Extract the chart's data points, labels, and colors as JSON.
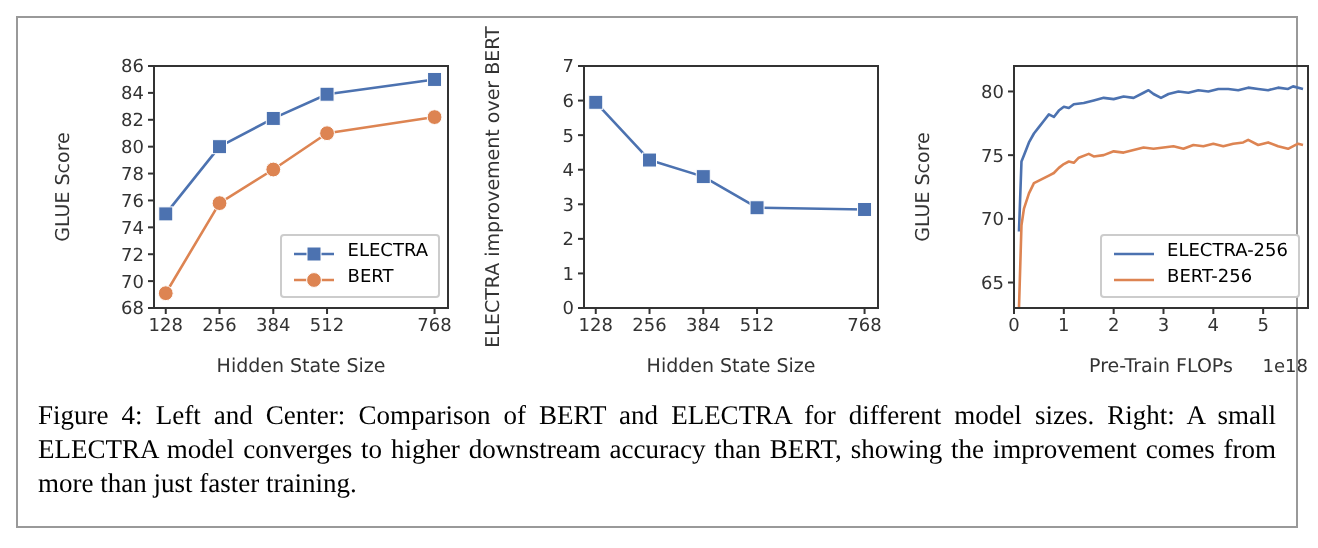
{
  "chart_data": [
    {
      "type": "line",
      "xlabel": "Hidden State Size",
      "ylabel": "GLUE Score",
      "x": [
        128,
        256,
        384,
        512,
        768
      ],
      "xlim": [
        100,
        800
      ],
      "xticks": [
        128,
        256,
        384,
        512,
        768
      ],
      "ylim": [
        68,
        86
      ],
      "yticks": [
        68,
        70,
        72,
        74,
        76,
        78,
        80,
        82,
        84,
        86
      ],
      "legend": "bottom right",
      "grid": false,
      "series": [
        {
          "name": "ELECTRA",
          "color": "#4c72b0",
          "marker": "square",
          "values": [
            75.0,
            80.0,
            82.1,
            83.9,
            85.0
          ]
        },
        {
          "name": "BERT",
          "color": "#dd8452",
          "marker": "circle",
          "values": [
            69.1,
            75.8,
            78.3,
            81.0,
            82.2
          ]
        }
      ],
      "annotations": [
        "Figure 4: Left and Center: Comparison of BERT and ELECTRA for different model sizes. Right: A small ELECTRA model converges to higher downstream accuracy than BERT, showing the improvement comes from more than just faster training."
      ]
    },
    {
      "type": "line",
      "xlabel": "Hidden State Size",
      "ylabel": "ELECTRA improvement over BERT",
      "x": [
        128,
        256,
        384,
        512,
        768
      ],
      "xlim": [
        100,
        800
      ],
      "xticks": [
        128,
        256,
        384,
        512,
        768
      ],
      "ylim": [
        0,
        7
      ],
      "yticks": [
        0,
        1,
        2,
        3,
        4,
        5,
        6,
        7
      ],
      "marker": "square",
      "grid": false,
      "series": [
        {
          "color": "#4c72b0",
          "values": [
            5.95,
            4.28,
            3.8,
            2.9,
            2.85
          ]
        }
      ]
    },
    {
      "type": "line",
      "xlabel": "Pre-Train FLOPs",
      "ylabel": "GLUE Score",
      "xlim": [
        0,
        5.9
      ],
      "xticks": [
        0,
        1,
        2,
        3,
        4,
        5
      ],
      "ylim": [
        63,
        82
      ],
      "yticks": [
        65,
        70,
        75,
        80
      ],
      "legend": "bottom right",
      "marker": "none",
      "grid": false,
      "series": [
        {
          "name": "ELECTRA-256",
          "color": "#4c72b0",
          "x": [
            0.1,
            0.15,
            0.2,
            0.3,
            0.4,
            0.5,
            0.6,
            0.7,
            0.8,
            0.9,
            1.0,
            1.1,
            1.2,
            1.4,
            1.6,
            1.8,
            2.0,
            2.2,
            2.4,
            2.6,
            2.7,
            2.8,
            2.95,
            3.1,
            3.3,
            3.5,
            3.7,
            3.9,
            4.1,
            4.3,
            4.5,
            4.7,
            4.9,
            5.1,
            5.3,
            5.5,
            5.6,
            5.8
          ],
          "values": [
            69,
            74.5,
            75,
            76,
            76.7,
            77.2,
            77.7,
            78.2,
            78.0,
            78.5,
            78.8,
            78.7,
            79.0,
            79.1,
            79.3,
            79.5,
            79.4,
            79.6,
            79.5,
            79.9,
            80.1,
            79.8,
            79.5,
            79.8,
            80.0,
            79.9,
            80.1,
            80.0,
            80.2,
            80.2,
            80.1,
            80.3,
            80.2,
            80.1,
            80.3,
            80.2,
            80.4,
            80.2
          ]
        },
        {
          "name": "BERT-256",
          "color": "#dd8452",
          "x": [
            0.1,
            0.15,
            0.2,
            0.3,
            0.4,
            0.5,
            0.6,
            0.7,
            0.8,
            0.9,
            1.0,
            1.1,
            1.2,
            1.3,
            1.5,
            1.6,
            1.8,
            2.0,
            2.2,
            2.4,
            2.6,
            2.8,
            3.0,
            3.2,
            3.4,
            3.6,
            3.8,
            4.0,
            4.2,
            4.4,
            4.6,
            4.7,
            4.9,
            5.1,
            5.3,
            5.5,
            5.7,
            5.8
          ],
          "values": [
            63,
            69.5,
            70.8,
            72,
            72.8,
            73,
            73.2,
            73.4,
            73.6,
            74.0,
            74.3,
            74.5,
            74.4,
            74.8,
            75.1,
            74.9,
            75.0,
            75.3,
            75.2,
            75.4,
            75.6,
            75.5,
            75.6,
            75.7,
            75.5,
            75.8,
            75.7,
            75.9,
            75.7,
            75.9,
            76.0,
            76.2,
            75.8,
            76.0,
            75.7,
            75.5,
            75.9,
            75.8
          ]
        }
      ],
      "annotations": [
        "1e18"
      ]
    }
  ]
}
